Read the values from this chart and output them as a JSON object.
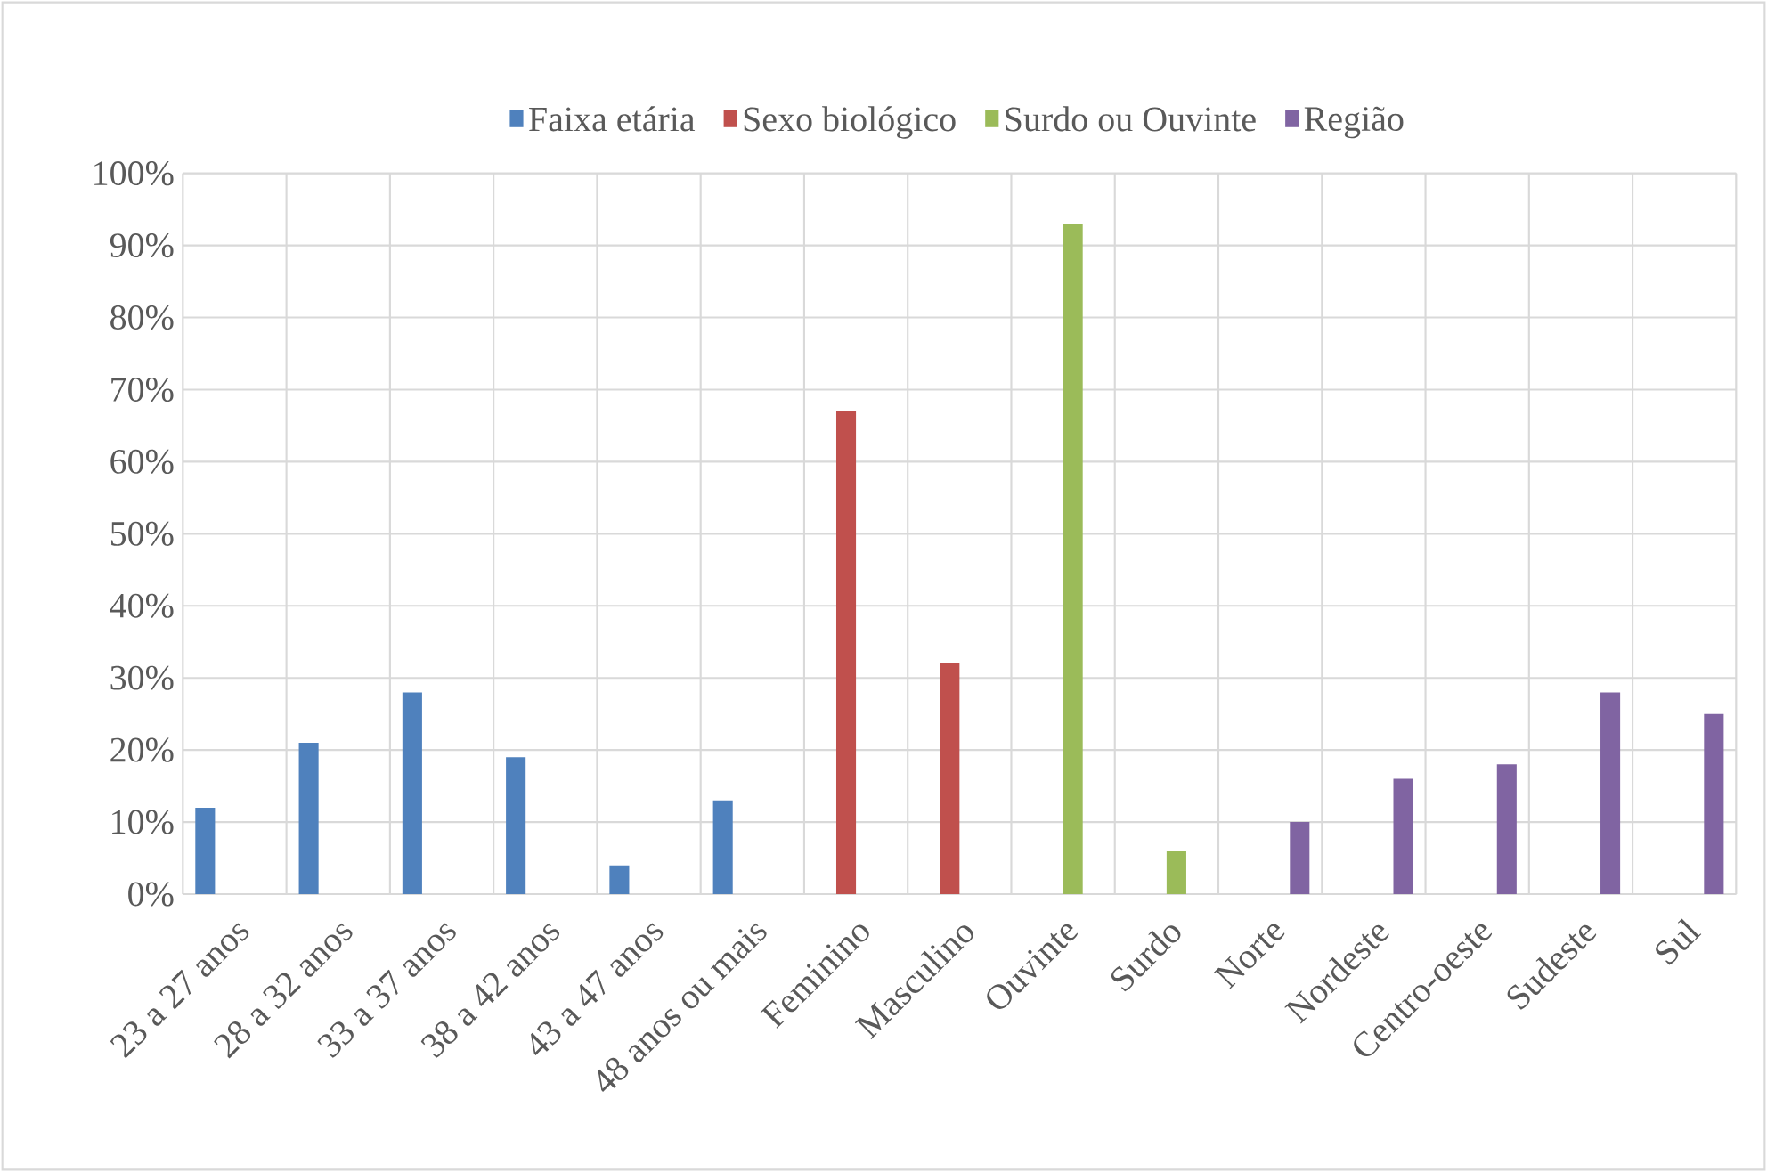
{
  "chart_data": {
    "type": "bar",
    "categories": [
      "23 a 27 anos",
      "28 a 32 anos",
      "33 a 37 anos",
      "38 a 42 anos",
      "43 a 47 anos",
      "48 anos ou mais",
      "Feminino",
      "Masculino",
      "Ouvinte",
      "Surdo",
      "Norte",
      "Nordeste",
      "Centro-oeste",
      "Sudeste",
      "Sul"
    ],
    "series": [
      {
        "name": "Faixa etária",
        "color": "#4f81bd",
        "values": [
          12,
          21,
          28,
          19,
          4,
          13,
          null,
          null,
          null,
          null,
          null,
          null,
          null,
          null,
          null
        ]
      },
      {
        "name": "Sexo biológico",
        "color": "#c0504d",
        "values": [
          null,
          null,
          null,
          null,
          null,
          null,
          67,
          32,
          null,
          null,
          null,
          null,
          null,
          null,
          null
        ]
      },
      {
        "name": "Surdo ou Ouvinte",
        "color": "#9bbb59",
        "values": [
          null,
          null,
          null,
          null,
          null,
          null,
          null,
          null,
          93,
          6,
          null,
          null,
          null,
          null,
          null
        ]
      },
      {
        "name": "Região",
        "color": "#8064a2",
        "values": [
          null,
          null,
          null,
          null,
          null,
          null,
          null,
          null,
          null,
          null,
          10,
          16,
          18,
          28,
          25
        ]
      }
    ],
    "ylim": [
      0,
      100
    ],
    "yticks": [
      {
        "value": 0,
        "label": "0%"
      },
      {
        "value": 10,
        "label": "10%"
      },
      {
        "value": 20,
        "label": "20%"
      },
      {
        "value": 30,
        "label": "30%"
      },
      {
        "value": 40,
        "label": "40%"
      },
      {
        "value": 50,
        "label": "50%"
      },
      {
        "value": 60,
        "label": "60%"
      },
      {
        "value": 70,
        "label": "70%"
      },
      {
        "value": 80,
        "label": "80%"
      },
      {
        "value": 90,
        "label": "90%"
      },
      {
        "value": 100,
        "label": "100%"
      }
    ],
    "grid": true,
    "legend": "top"
  }
}
